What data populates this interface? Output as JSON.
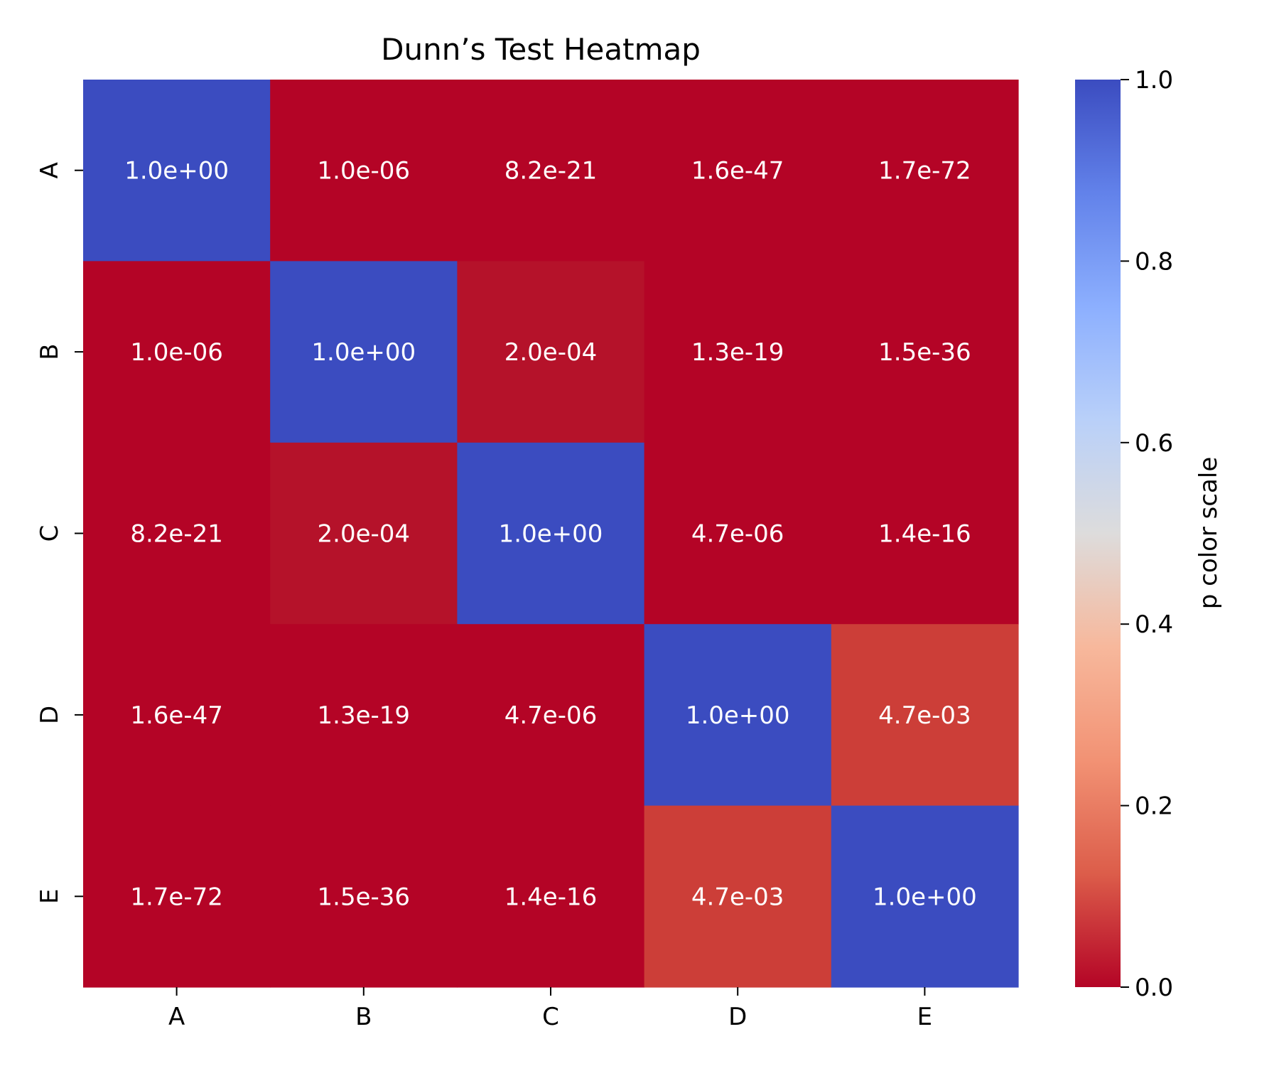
{
  "chart_data": {
    "type": "heatmap",
    "title": "Dunn’s Test Heatmap",
    "rows": [
      "A",
      "B",
      "C",
      "D",
      "E"
    ],
    "columns": [
      "A",
      "B",
      "C",
      "D",
      "E"
    ],
    "values": [
      [
        1.0,
        1e-06,
        8.2e-21,
        1.6e-47,
        1.7e-72
      ],
      [
        1e-06,
        1.0,
        0.0002,
        1.3e-19,
        1.5e-36
      ],
      [
        8.2e-21,
        0.0002,
        1.0,
        4.7e-06,
        1.4e-16
      ],
      [
        1.6e-47,
        1.3e-19,
        4.7e-06,
        1.0,
        0.0047
      ],
      [
        1.7e-72,
        1.5e-36,
        1.4e-16,
        0.0047,
        1.0
      ]
    ],
    "cell_labels": [
      [
        "1.0e+00",
        "1.0e-06",
        "8.2e-21",
        "1.6e-47",
        "1.7e-72"
      ],
      [
        "1.0e-06",
        "1.0e+00",
        "2.0e-04",
        "1.3e-19",
        "1.5e-36"
      ],
      [
        "8.2e-21",
        "2.0e-04",
        "1.0e+00",
        "4.7e-06",
        "1.4e-16"
      ],
      [
        "1.6e-47",
        "1.3e-19",
        "4.7e-06",
        "1.0e+00",
        "4.7e-03"
      ],
      [
        "1.7e-72",
        "1.5e-36",
        "1.4e-16",
        "4.7e-03",
        "1.0e+00"
      ]
    ],
    "cell_colors": [
      [
        "#3b4cc0",
        "#b40426",
        "#b40426",
        "#b40426",
        "#b40426"
      ],
      [
        "#b40426",
        "#3b4cc0",
        "#b5122a",
        "#b40426",
        "#b40426"
      ],
      [
        "#b40426",
        "#b5122a",
        "#3b4cc0",
        "#b40426",
        "#b40426"
      ],
      [
        "#b40426",
        "#b40426",
        "#b40426",
        "#3b4cc0",
        "#cc3e38"
      ],
      [
        "#b40426",
        "#b40426",
        "#b40426",
        "#cc3e38",
        "#3b4cc0"
      ]
    ],
    "colorbar": {
      "label": "p color scale",
      "range": [
        0.0,
        1.0
      ],
      "ticks": [
        "0.0",
        "0.2",
        "0.4",
        "0.6",
        "0.8",
        "1.0"
      ],
      "colormap": "coolwarm_r",
      "colors": [
        "#b40426",
        "#dc5d4a",
        "#f29274",
        "#f7b89c",
        "#dddcdc",
        "#b9d0f9",
        "#8caffe",
        "#6282ea",
        "#3b4cc0"
      ]
    }
  }
}
